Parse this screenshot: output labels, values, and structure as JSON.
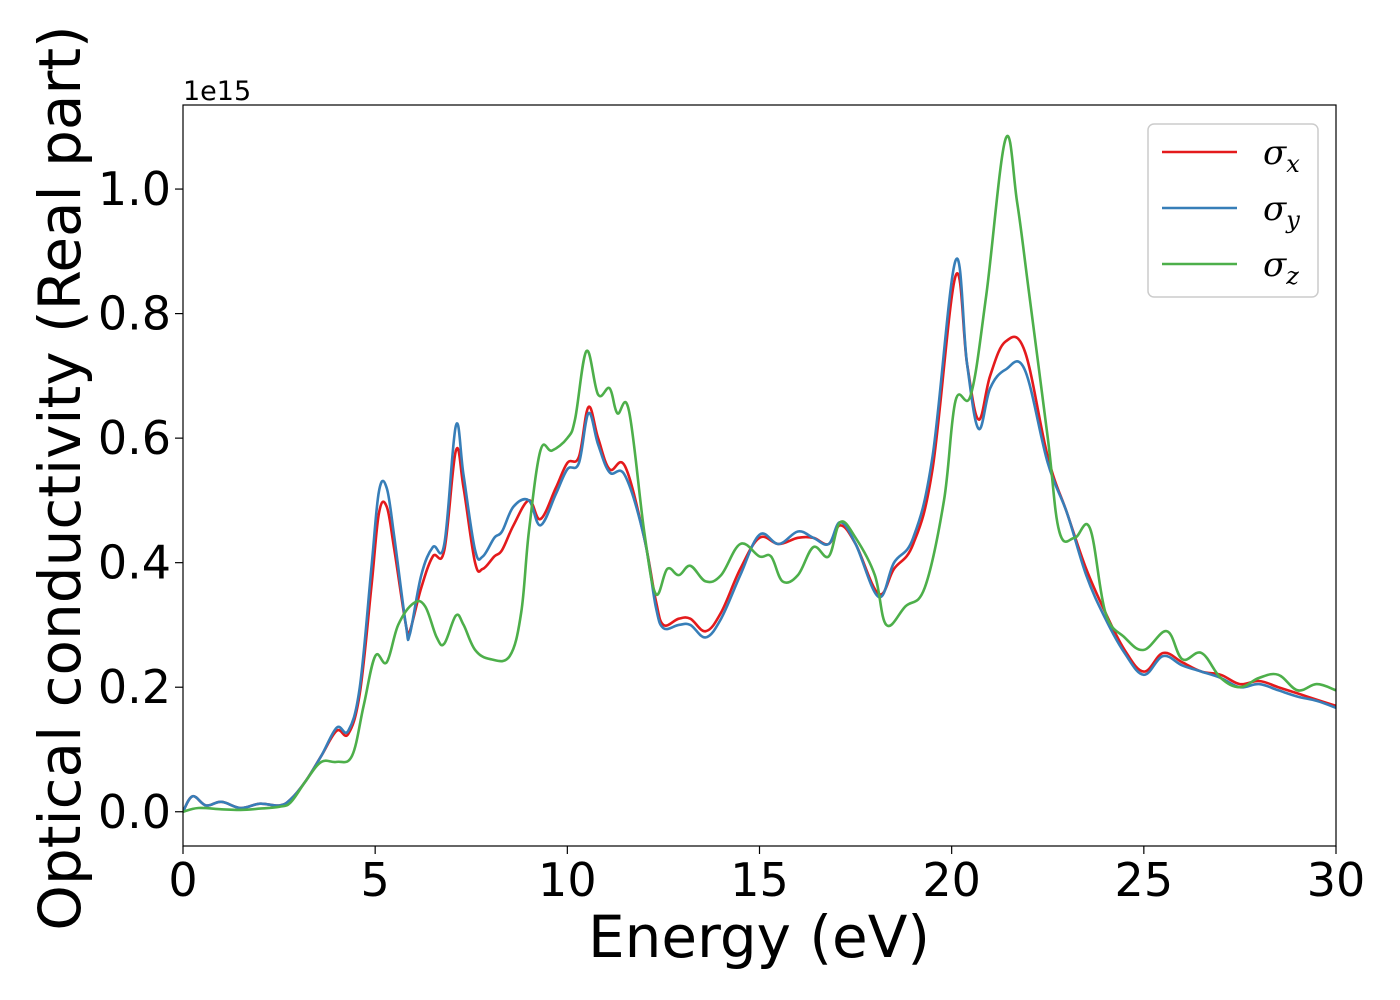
{
  "chart_data": {
    "type": "line",
    "xlabel": "Energy (eV)",
    "ylabel": "Optical conductivity (Real part)",
    "y_offset_label": "1e15",
    "xlim": [
      0,
      30
    ],
    "ylim": [
      -0.055,
      1.135
    ],
    "xticks": [
      0,
      5,
      10,
      15,
      20,
      25,
      30
    ],
    "xtick_labels": [
      "0",
      "5",
      "10",
      "15",
      "20",
      "25",
      "30"
    ],
    "yticks": [
      0.0,
      0.2,
      0.4,
      0.6,
      0.8,
      1.0
    ],
    "ytick_labels": [
      "0.0",
      "0.2",
      "0.4",
      "0.6",
      "0.8",
      "1.0"
    ],
    "grid": false,
    "legend_position": "top-right",
    "series": [
      {
        "name": "σx",
        "legend_base": "σ",
        "legend_sub": "x",
        "color": "#e41a1c",
        "points": [
          [
            0,
            0.0
          ],
          [
            0.25,
            0.025
          ],
          [
            0.6,
            0.01
          ],
          [
            1.0,
            0.016
          ],
          [
            1.5,
            0.006
          ],
          [
            2.0,
            0.013
          ],
          [
            2.5,
            0.01
          ],
          [
            2.8,
            0.02
          ],
          [
            3.2,
            0.05
          ],
          [
            3.6,
            0.09
          ],
          [
            4.0,
            0.13
          ],
          [
            4.3,
            0.125
          ],
          [
            4.6,
            0.19
          ],
          [
            4.9,
            0.36
          ],
          [
            5.1,
            0.48
          ],
          [
            5.3,
            0.49
          ],
          [
            5.5,
            0.42
          ],
          [
            5.8,
            0.3
          ],
          [
            5.9,
            0.29
          ],
          [
            6.2,
            0.36
          ],
          [
            6.5,
            0.41
          ],
          [
            6.8,
            0.42
          ],
          [
            7.1,
            0.58
          ],
          [
            7.3,
            0.52
          ],
          [
            7.6,
            0.4
          ],
          [
            7.8,
            0.39
          ],
          [
            8.1,
            0.41
          ],
          [
            8.3,
            0.42
          ],
          [
            8.6,
            0.46
          ],
          [
            9.0,
            0.5
          ],
          [
            9.3,
            0.47
          ],
          [
            9.7,
            0.52
          ],
          [
            10.0,
            0.56
          ],
          [
            10.3,
            0.57
          ],
          [
            10.55,
            0.65
          ],
          [
            10.8,
            0.6
          ],
          [
            11.1,
            0.55
          ],
          [
            11.5,
            0.555
          ],
          [
            12.0,
            0.44
          ],
          [
            12.3,
            0.34
          ],
          [
            12.5,
            0.3
          ],
          [
            12.9,
            0.31
          ],
          [
            13.2,
            0.31
          ],
          [
            13.6,
            0.29
          ],
          [
            14.0,
            0.32
          ],
          [
            14.5,
            0.39
          ],
          [
            15.0,
            0.44
          ],
          [
            15.5,
            0.43
          ],
          [
            16.0,
            0.44
          ],
          [
            16.4,
            0.44
          ],
          [
            16.8,
            0.43
          ],
          [
            17.1,
            0.46
          ],
          [
            17.5,
            0.43
          ],
          [
            18.1,
            0.35
          ],
          [
            18.5,
            0.39
          ],
          [
            19.0,
            0.43
          ],
          [
            19.5,
            0.55
          ],
          [
            20.1,
            0.86
          ],
          [
            20.4,
            0.72
          ],
          [
            20.7,
            0.63
          ],
          [
            21.0,
            0.7
          ],
          [
            21.4,
            0.755
          ],
          [
            21.9,
            0.74
          ],
          [
            22.5,
            0.57
          ],
          [
            23.0,
            0.48
          ],
          [
            23.5,
            0.39
          ],
          [
            24.0,
            0.32
          ],
          [
            24.5,
            0.26
          ],
          [
            25.0,
            0.225
          ],
          [
            25.5,
            0.255
          ],
          [
            26.0,
            0.24
          ],
          [
            26.5,
            0.225
          ],
          [
            27.0,
            0.22
          ],
          [
            27.5,
            0.205
          ],
          [
            28.0,
            0.21
          ],
          [
            28.5,
            0.2
          ],
          [
            29.0,
            0.19
          ],
          [
            29.5,
            0.18
          ],
          [
            30.0,
            0.17
          ]
        ]
      },
      {
        "name": "σy",
        "legend_base": "σ",
        "legend_sub": "y",
        "color": "#377eb8",
        "points": [
          [
            0,
            0.0
          ],
          [
            0.25,
            0.025
          ],
          [
            0.6,
            0.01
          ],
          [
            1.0,
            0.016
          ],
          [
            1.5,
            0.006
          ],
          [
            2.0,
            0.013
          ],
          [
            2.5,
            0.01
          ],
          [
            2.8,
            0.02
          ],
          [
            3.2,
            0.05
          ],
          [
            3.6,
            0.09
          ],
          [
            4.0,
            0.135
          ],
          [
            4.3,
            0.13
          ],
          [
            4.6,
            0.2
          ],
          [
            4.9,
            0.39
          ],
          [
            5.1,
            0.515
          ],
          [
            5.3,
            0.52
          ],
          [
            5.5,
            0.44
          ],
          [
            5.8,
            0.3
          ],
          [
            5.9,
            0.285
          ],
          [
            6.2,
            0.38
          ],
          [
            6.5,
            0.425
          ],
          [
            6.8,
            0.43
          ],
          [
            7.1,
            0.62
          ],
          [
            7.3,
            0.54
          ],
          [
            7.6,
            0.42
          ],
          [
            7.8,
            0.41
          ],
          [
            8.1,
            0.44
          ],
          [
            8.3,
            0.45
          ],
          [
            8.6,
            0.49
          ],
          [
            9.0,
            0.5
          ],
          [
            9.3,
            0.46
          ],
          [
            9.7,
            0.51
          ],
          [
            10.0,
            0.55
          ],
          [
            10.3,
            0.56
          ],
          [
            10.55,
            0.64
          ],
          [
            10.8,
            0.59
          ],
          [
            11.1,
            0.545
          ],
          [
            11.5,
            0.54
          ],
          [
            12.0,
            0.44
          ],
          [
            12.3,
            0.33
          ],
          [
            12.5,
            0.295
          ],
          [
            12.9,
            0.3
          ],
          [
            13.2,
            0.3
          ],
          [
            13.6,
            0.28
          ],
          [
            14.0,
            0.31
          ],
          [
            14.5,
            0.38
          ],
          [
            15.0,
            0.445
          ],
          [
            15.5,
            0.43
          ],
          [
            16.0,
            0.45
          ],
          [
            16.4,
            0.44
          ],
          [
            16.8,
            0.43
          ],
          [
            17.1,
            0.465
          ],
          [
            17.5,
            0.43
          ],
          [
            18.1,
            0.345
          ],
          [
            18.5,
            0.4
          ],
          [
            19.0,
            0.44
          ],
          [
            19.5,
            0.57
          ],
          [
            20.1,
            0.885
          ],
          [
            20.4,
            0.72
          ],
          [
            20.7,
            0.615
          ],
          [
            21.0,
            0.68
          ],
          [
            21.4,
            0.71
          ],
          [
            21.9,
            0.71
          ],
          [
            22.5,
            0.56
          ],
          [
            23.0,
            0.48
          ],
          [
            23.5,
            0.38
          ],
          [
            24.0,
            0.31
          ],
          [
            24.5,
            0.255
          ],
          [
            25.0,
            0.22
          ],
          [
            25.5,
            0.25
          ],
          [
            26.0,
            0.235
          ],
          [
            26.5,
            0.225
          ],
          [
            27.0,
            0.215
          ],
          [
            27.5,
            0.2
          ],
          [
            28.0,
            0.205
          ],
          [
            28.5,
            0.195
          ],
          [
            29.0,
            0.185
          ],
          [
            29.5,
            0.178
          ],
          [
            30.0,
            0.167
          ]
        ]
      },
      {
        "name": "σz",
        "legend_base": "σ",
        "legend_sub": "z",
        "color": "#4daf4a",
        "points": [
          [
            0,
            0.0
          ],
          [
            0.4,
            0.006
          ],
          [
            1.0,
            0.004
          ],
          [
            1.5,
            0.003
          ],
          [
            2.0,
            0.005
          ],
          [
            2.5,
            0.008
          ],
          [
            2.8,
            0.015
          ],
          [
            3.2,
            0.05
          ],
          [
            3.6,
            0.08
          ],
          [
            4.0,
            0.08
          ],
          [
            4.4,
            0.09
          ],
          [
            4.7,
            0.17
          ],
          [
            5.0,
            0.25
          ],
          [
            5.3,
            0.24
          ],
          [
            5.6,
            0.3
          ],
          [
            6.0,
            0.335
          ],
          [
            6.3,
            0.33
          ],
          [
            6.6,
            0.28
          ],
          [
            6.8,
            0.27
          ],
          [
            7.1,
            0.315
          ],
          [
            7.3,
            0.3
          ],
          [
            7.6,
            0.26
          ],
          [
            8.0,
            0.245
          ],
          [
            8.5,
            0.25
          ],
          [
            8.8,
            0.32
          ],
          [
            9.0,
            0.45
          ],
          [
            9.3,
            0.58
          ],
          [
            9.6,
            0.58
          ],
          [
            10.0,
            0.6
          ],
          [
            10.2,
            0.63
          ],
          [
            10.5,
            0.74
          ],
          [
            10.8,
            0.67
          ],
          [
            11.1,
            0.68
          ],
          [
            11.3,
            0.64
          ],
          [
            11.6,
            0.645
          ],
          [
            12.0,
            0.45
          ],
          [
            12.3,
            0.35
          ],
          [
            12.6,
            0.39
          ],
          [
            12.9,
            0.38
          ],
          [
            13.2,
            0.395
          ],
          [
            13.6,
            0.37
          ],
          [
            14.0,
            0.38
          ],
          [
            14.5,
            0.43
          ],
          [
            15.0,
            0.41
          ],
          [
            15.3,
            0.41
          ],
          [
            15.6,
            0.37
          ],
          [
            16.0,
            0.38
          ],
          [
            16.4,
            0.425
          ],
          [
            16.8,
            0.41
          ],
          [
            17.1,
            0.465
          ],
          [
            17.5,
            0.44
          ],
          [
            18.0,
            0.38
          ],
          [
            18.3,
            0.3
          ],
          [
            18.8,
            0.33
          ],
          [
            19.3,
            0.36
          ],
          [
            19.8,
            0.5
          ],
          [
            20.1,
            0.66
          ],
          [
            20.5,
            0.67
          ],
          [
            20.9,
            0.83
          ],
          [
            21.4,
            1.08
          ],
          [
            21.7,
            0.98
          ],
          [
            22.0,
            0.84
          ],
          [
            22.5,
            0.6
          ],
          [
            22.8,
            0.45
          ],
          [
            23.2,
            0.44
          ],
          [
            23.6,
            0.455
          ],
          [
            24.0,
            0.32
          ],
          [
            24.5,
            0.28
          ],
          [
            25.0,
            0.26
          ],
          [
            25.6,
            0.29
          ],
          [
            26.0,
            0.245
          ],
          [
            26.5,
            0.255
          ],
          [
            27.0,
            0.215
          ],
          [
            27.5,
            0.2
          ],
          [
            28.0,
            0.215
          ],
          [
            28.5,
            0.22
          ],
          [
            29.0,
            0.195
          ],
          [
            29.5,
            0.205
          ],
          [
            30.0,
            0.195
          ]
        ]
      }
    ]
  }
}
